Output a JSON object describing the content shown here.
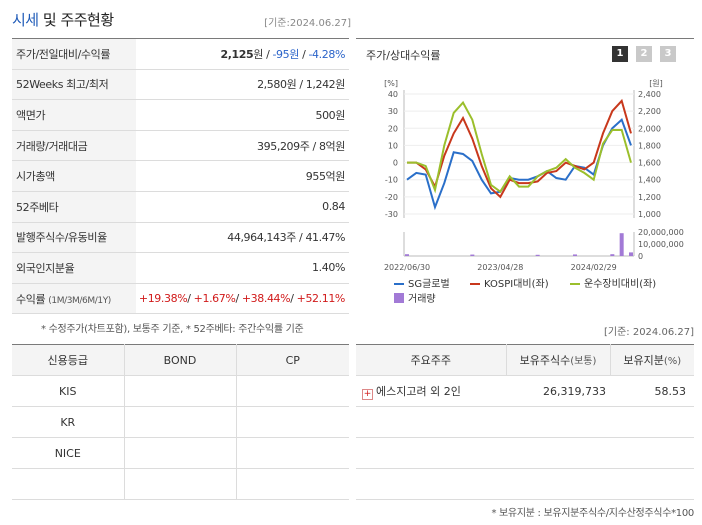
{
  "header": {
    "title_accent": "시세",
    "title_rest": " 및 주주현황",
    "date": "[기준:2024.06.27]"
  },
  "price_rows": [
    {
      "label": "주가/전일대비/수익률",
      "parts": [
        {
          "t": "2,125",
          "c": "bold"
        },
        {
          "t": "원 / ",
          "c": ""
        },
        {
          "t": "-95원",
          "c": "neg"
        },
        {
          "t": " / ",
          "c": ""
        },
        {
          "t": "-4.28%",
          "c": "neg"
        }
      ]
    },
    {
      "label": "52Weeks 최고/최저",
      "parts": [
        {
          "t": "2,580원 / 1,242원",
          "c": ""
        }
      ]
    },
    {
      "label": "액면가",
      "parts": [
        {
          "t": "500원",
          "c": ""
        }
      ]
    },
    {
      "label": "거래량/거래대금",
      "parts": [
        {
          "t": "395,209주 / 8억원",
          "c": ""
        }
      ]
    },
    {
      "label": "시가총액",
      "parts": [
        {
          "t": "955억원",
          "c": ""
        }
      ]
    },
    {
      "label": "52주베타",
      "parts": [
        {
          "t": "0.84",
          "c": ""
        }
      ]
    },
    {
      "label": "발행주식수/유동비율",
      "parts": [
        {
          "t": "44,964,143주 / 41.47%",
          "c": ""
        }
      ]
    },
    {
      "label": "외국인지분율",
      "parts": [
        {
          "t": "1.40%",
          "c": ""
        }
      ]
    },
    {
      "label": "수익률",
      "label_small": "(1M/3M/6M/1Y)",
      "parts": [
        {
          "t": "+19.38%",
          "c": "pos"
        },
        {
          "t": "/ ",
          "c": ""
        },
        {
          "t": "+1.67%",
          "c": "pos"
        },
        {
          "t": "/ ",
          "c": ""
        },
        {
          "t": "+38.44%",
          "c": "pos"
        },
        {
          "t": "/ ",
          "c": ""
        },
        {
          "t": "+52.11%",
          "c": "pos"
        }
      ]
    }
  ],
  "note1": "* 수정주가(차트포함), 보통주 기준, * 52주베타: 주간수익률 기준",
  "chart": {
    "title": "주가/상대수익률",
    "pages": [
      "1",
      "2",
      "3"
    ],
    "left_unit": "[%]",
    "right_unit": "[원]"
  },
  "chart_data": {
    "type": "line",
    "x": [
      "2022/06",
      "2022/07",
      "2022/08",
      "2022/09",
      "2022/10",
      "2022/11",
      "2022/12",
      "2023/01",
      "2023/02",
      "2023/03",
      "2023/04",
      "2023/05",
      "2023/06",
      "2023/07",
      "2023/08",
      "2023/09",
      "2023/10",
      "2023/11",
      "2023/12",
      "2024/01",
      "2024/02",
      "2024/03",
      "2024/04",
      "2024/05",
      "2024/06"
    ],
    "x_tick_labels": [
      "2022/06/30",
      "2023/04/28",
      "2024/02/29"
    ],
    "y_left_ticks": [
      "40",
      "30",
      "20",
      "10",
      "0",
      "-10",
      "-20",
      "-30"
    ],
    "y_right_ticks": [
      "2,400",
      "2,200",
      "2,000",
      "1,800",
      "1,600",
      "1,400",
      "1,200",
      "1,000"
    ],
    "ylim_left": [
      -30,
      40
    ],
    "volume_ticks": [
      "20,000,000",
      "10,000,000",
      "0"
    ],
    "volume_lim": [
      0,
      20000000
    ],
    "series": [
      {
        "name": "SG글로벌",
        "color": "#2a6fc9",
        "values": [
          -10,
          -6,
          -7,
          -26,
          -12,
          6,
          5,
          1,
          -10,
          -18,
          -17,
          -9,
          -10,
          -10,
          -8,
          -5,
          -9,
          -10,
          -2,
          -3,
          -7,
          10,
          20,
          25,
          10
        ]
      },
      {
        "name": "KOSPI대비(좌)",
        "color": "#c8381c",
        "values": [
          0,
          0,
          -4,
          -14,
          4,
          17,
          26,
          14,
          -2,
          -15,
          -20,
          -10,
          -12,
          -12,
          -11,
          -6,
          -5,
          0,
          -2,
          -4,
          0,
          17,
          30,
          36,
          17
        ]
      },
      {
        "name": "운수장비대비(좌)",
        "color": "#9bbf2c",
        "values": [
          0,
          0,
          -2,
          -16,
          10,
          29,
          35,
          25,
          5,
          -13,
          -17,
          -8,
          -14,
          -14,
          -8,
          -5,
          -3,
          2,
          -3,
          -6,
          -10,
          11,
          19,
          19,
          0
        ]
      }
    ],
    "volume_series": {
      "name": "거래량",
      "color": "#a27ad6",
      "values": [
        1500000,
        0,
        0,
        0,
        0,
        0,
        0,
        1200000,
        0,
        0,
        0,
        0,
        0,
        0,
        1000000,
        0,
        0,
        0,
        1300000,
        0,
        0,
        0,
        1500000,
        19000000,
        3000000
      ]
    },
    "legend_position": "bottom"
  },
  "date2": "[기준: 2024.06.27]",
  "credit": {
    "headers": [
      "신용등급",
      "BOND",
      "CP"
    ],
    "rows": [
      [
        "KIS",
        "",
        ""
      ],
      [
        "KR",
        "",
        ""
      ],
      [
        "NICE",
        "",
        ""
      ],
      [
        "",
        "",
        ""
      ]
    ]
  },
  "holders": {
    "headers": [
      "주요주주",
      "보유주식수",
      "(보통)",
      "보유지분",
      "(%)"
    ],
    "rows": [
      {
        "name": "에스지고려 외 2인",
        "shares": "26,319,733",
        "pct": "58.53"
      },
      {
        "name": "",
        "shares": "",
        "pct": ""
      },
      {
        "name": "",
        "shares": "",
        "pct": ""
      },
      {
        "name": "",
        "shares": "",
        "pct": ""
      }
    ]
  },
  "note2": "* 보유지분 : 보유지분주식수/지수산정주식수*100"
}
